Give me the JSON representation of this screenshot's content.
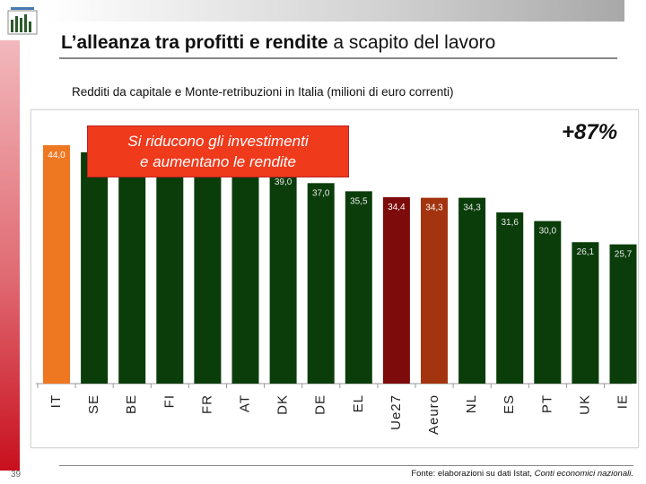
{
  "slide": {
    "title_bold": "L’alleanza tra profitti e rendite",
    "title_rest": " a scapito del lavoro",
    "subtitle": "Redditi da capitale e Monte-retribuzioni in Italia (milioni di euro correnti)",
    "page_number": "39",
    "source_prefix": "Fonte: elaborazioni su dati Istat, ",
    "source_italic": "Conti economici nazionali."
  },
  "callout": {
    "line1": "Si riducono gli investimenti",
    "line2": "e aumentano le rendite",
    "percent": "+87%"
  },
  "colors": {
    "default_bar": "#0b3d0b",
    "highlight_IT": "#ee7722",
    "highlight_Ue27": "#7d0b0b",
    "highlight_Aeuro": "#a3340f",
    "callout_bg": "#ef3a1c",
    "left_strip": "#c8101e"
  },
  "chart_data": {
    "type": "bar",
    "categories": [
      "IT",
      "SE",
      "BE",
      "FI",
      "FR",
      "AT",
      "DK",
      "DE",
      "EL",
      "Ue27",
      "Aeuro",
      "NL",
      "ES",
      "PT",
      "UK",
      "IE"
    ],
    "values": [
      44.0,
      42.7,
      42.3,
      41.4,
      41.3,
      41.0,
      39.0,
      37.0,
      35.5,
      34.4,
      34.3,
      34.3,
      31.6,
      30.0,
      26.1,
      25.7
    ],
    "labels": [
      "44,0",
      "",
      "",
      "41,4",
      "41,3",
      "41,0",
      "39,0",
      "37,0",
      "35,5",
      "34,4",
      "34,3",
      "34,3",
      "31,6",
      "30,0",
      "26,1",
      "25,7"
    ],
    "bar_colors": [
      "#ee7722",
      "#0b3d0b",
      "#0b3d0b",
      "#0b3d0b",
      "#0b3d0b",
      "#0b3d0b",
      "#0b3d0b",
      "#0b3d0b",
      "#0b3d0b",
      "#7d0b0b",
      "#a3340f",
      "#0b3d0b",
      "#0b3d0b",
      "#0b3d0b",
      "#0b3d0b",
      "#0b3d0b"
    ],
    "ylim": [
      0,
      48
    ],
    "grid": false,
    "legend": "none"
  }
}
